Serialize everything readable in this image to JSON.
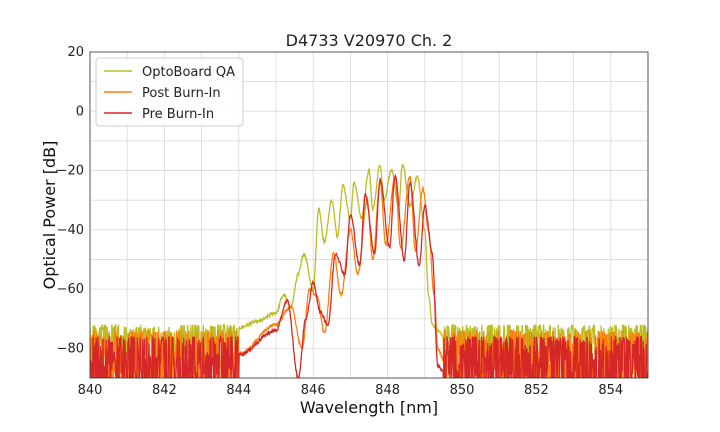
{
  "chart_data": {
    "type": "line",
    "title": "D4733 V20970 Ch. 2",
    "xlabel": "Wavelength [nm]",
    "ylabel": "Optical Power [dB]",
    "xlim": [
      840,
      855
    ],
    "ylim": [
      -90,
      20
    ],
    "xticks": [
      840,
      842,
      844,
      846,
      848,
      850,
      852,
      854
    ],
    "yticks": [
      -80,
      -60,
      -40,
      -20,
      0,
      20
    ],
    "xtick_labels": [
      "840",
      "842",
      "844",
      "846",
      "848",
      "850",
      "852",
      "854"
    ],
    "ytick_labels": [
      "−80",
      "−60",
      "−40",
      "−20",
      "0",
      "20"
    ],
    "grid": true,
    "legend_position": "top-left",
    "series": [
      {
        "name": "OptoBoard QA",
        "color": "#bcbd22",
        "noise_floor": -74,
        "noise_band": [
          -80,
          -72
        ],
        "x": [
          844.0,
          844.5,
          845.0,
          845.2,
          845.4,
          845.6,
          845.75,
          846.0,
          846.15,
          846.3,
          846.5,
          846.65,
          846.8,
          847.0,
          847.1,
          847.3,
          847.5,
          847.6,
          847.8,
          847.9,
          848.1,
          848.3,
          848.4,
          848.6,
          848.8,
          849.0,
          849.1,
          849.2,
          849.35,
          849.5
        ],
        "y": [
          -73,
          -71,
          -68,
          -62,
          -66,
          -55,
          -48,
          -60,
          -33,
          -44,
          -30,
          -42,
          -25,
          -36,
          -24,
          -36,
          -20,
          -33,
          -18,
          -30,
          -20,
          -32,
          -18,
          -32,
          -22,
          -40,
          -62,
          -72,
          -74,
          -76
        ]
      },
      {
        "name": "Post Burn-In",
        "color": "#ff7f0e",
        "noise_floor": -78,
        "noise_band": [
          -90,
          -74
        ],
        "x": [
          844.0,
          845.0,
          845.4,
          845.7,
          845.9,
          846.1,
          846.3,
          846.55,
          846.75,
          847.0,
          847.2,
          847.45,
          847.6,
          847.8,
          847.95,
          848.2,
          848.35,
          848.6,
          848.75,
          848.95,
          849.1,
          849.25,
          849.35,
          849.5
        ],
        "y": [
          -82,
          -72,
          -66,
          -80,
          -60,
          -62,
          -75,
          -48,
          -62,
          -40,
          -55,
          -30,
          -50,
          -24,
          -45,
          -22,
          -46,
          -22,
          -47,
          -26,
          -40,
          -62,
          -80,
          -84
        ]
      },
      {
        "name": "Pre Burn-In",
        "color": "#d62728",
        "noise_floor": -80,
        "noise_band": [
          -90,
          -76
        ],
        "x": [
          844.0,
          845.0,
          845.3,
          845.6,
          845.8,
          846.0,
          846.2,
          846.4,
          846.6,
          846.85,
          847.0,
          847.25,
          847.4,
          847.65,
          847.8,
          848.05,
          848.2,
          848.45,
          848.6,
          848.85,
          849.0,
          849.2,
          849.35,
          849.5
        ],
        "y": [
          -82,
          -74,
          -64,
          -90,
          -70,
          -58,
          -68,
          -72,
          -48,
          -55,
          -35,
          -52,
          -28,
          -48,
          -23,
          -46,
          -22,
          -50,
          -24,
          -52,
          -32,
          -48,
          -86,
          -88
        ]
      }
    ]
  }
}
